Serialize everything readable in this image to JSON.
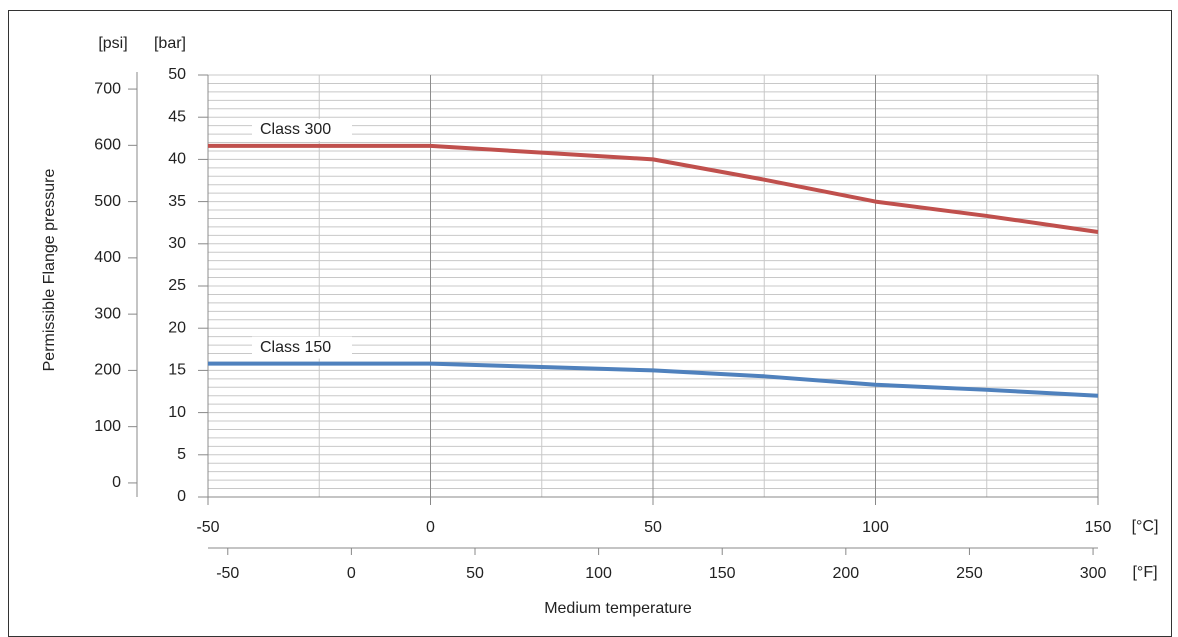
{
  "chart_data": {
    "type": "line",
    "y_label": "Permissible Flange pressure",
    "y_unit": "[bar]",
    "y2_unit": "[psi]",
    "x_label": "Medium temperature",
    "x_unit": "[°C]",
    "x2_unit": "[°F]",
    "x": [
      -50,
      -25,
      0,
      25,
      50,
      75,
      100,
      125,
      150
    ],
    "series": [
      {
        "name": "Class 300",
        "color": "#c0504d",
        "values": [
          41.6,
          41.6,
          41.6,
          40.8,
          40.0,
          37.6,
          35.0,
          33.3,
          31.4
        ]
      },
      {
        "name": "Class 150",
        "color": "#4f81bd",
        "values": [
          15.8,
          15.8,
          15.8,
          15.4,
          15.0,
          14.3,
          13.3,
          12.7,
          12.0
        ]
      }
    ],
    "xlim": [
      -50,
      150
    ],
    "xticks": [
      -50,
      0,
      50,
      100,
      150
    ],
    "x2lim": [
      -58,
      302
    ],
    "x2ticks": [
      -50,
      0,
      50,
      100,
      150,
      200,
      250,
      300
    ],
    "ylim": [
      0,
      50
    ],
    "yticks": [
      0,
      5,
      10,
      15,
      20,
      25,
      30,
      35,
      40,
      45,
      50
    ],
    "y2lim": [
      -25,
      725
    ],
    "y2ticks": [
      0,
      100,
      200,
      300,
      400,
      500,
      600,
      700
    ],
    "grid": true
  }
}
